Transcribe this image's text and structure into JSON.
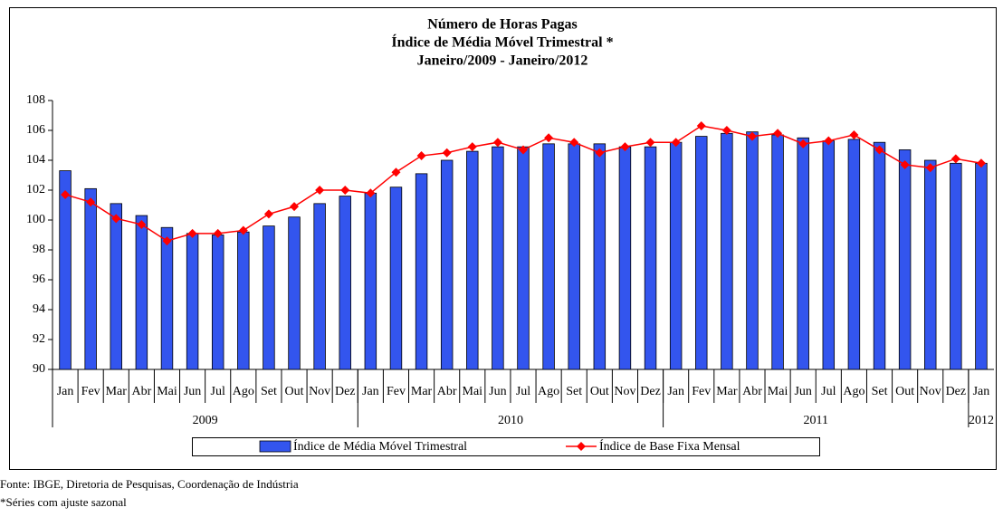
{
  "chart_data": {
    "type": "bar_line",
    "title_lines": [
      "Número de Horas Pagas",
      "Índice de Média Móvel Trimestral *",
      "Janeiro/2009 - Janeiro/2012"
    ],
    "category_groups": [
      {
        "label": "2009",
        "categories": [
          "Jan",
          "Fev",
          "Mar",
          "Abr",
          "Mai",
          "Jun",
          "Jul",
          "Ago",
          "Set",
          "Out",
          "Nov",
          "Dez"
        ]
      },
      {
        "label": "2010",
        "categories": [
          "Jan",
          "Fev",
          "Mar",
          "Abr",
          "Mai",
          "Jun",
          "Jul",
          "Ago",
          "Set",
          "Out",
          "Nov",
          "Dez"
        ]
      },
      {
        "label": "2011",
        "categories": [
          "Jan",
          "Fev",
          "Mar",
          "Abr",
          "Mai",
          "Jun",
          "Jul",
          "Ago",
          "Set",
          "Out",
          "Nov",
          "Dez"
        ]
      },
      {
        "label": "2012",
        "categories": [
          "Jan"
        ]
      }
    ],
    "series": [
      {
        "name": "Índice de Média Móvel Trimestral",
        "kind": "bar",
        "color": "#3355ee",
        "values": [
          103.3,
          102.1,
          101.1,
          100.3,
          99.5,
          99.1,
          99.0,
          99.2,
          99.6,
          100.2,
          101.1,
          101.6,
          101.8,
          102.2,
          103.1,
          104.0,
          104.6,
          104.9,
          104.9,
          105.1,
          105.1,
          105.1,
          104.9,
          104.9,
          105.2,
          105.6,
          105.8,
          105.9,
          105.7,
          105.5,
          105.3,
          105.4,
          105.2,
          104.7,
          104.0,
          103.8,
          103.8
        ]
      },
      {
        "name": "Índice de Base Fixa Mensal",
        "kind": "line",
        "color": "#ff0000",
        "values": [
          101.7,
          101.2,
          100.1,
          99.7,
          98.6,
          99.1,
          99.1,
          99.3,
          100.4,
          100.9,
          102.0,
          102.0,
          101.8,
          103.2,
          104.3,
          104.5,
          104.9,
          105.2,
          104.7,
          105.5,
          105.2,
          104.5,
          104.9,
          105.2,
          105.2,
          106.3,
          106.0,
          105.6,
          105.8,
          105.1,
          105.3,
          105.7,
          104.7,
          103.7,
          103.5,
          104.1,
          103.8
        ]
      }
    ],
    "ylim": [
      90,
      108
    ],
    "yticks": [
      90,
      92,
      94,
      96,
      98,
      100,
      102,
      104,
      106,
      108
    ]
  },
  "notes": [
    "Fonte: IBGE, Diretoria de Pesquisas, Coordenação de Indústria",
    "*Séries com ajuste sazonal"
  ]
}
